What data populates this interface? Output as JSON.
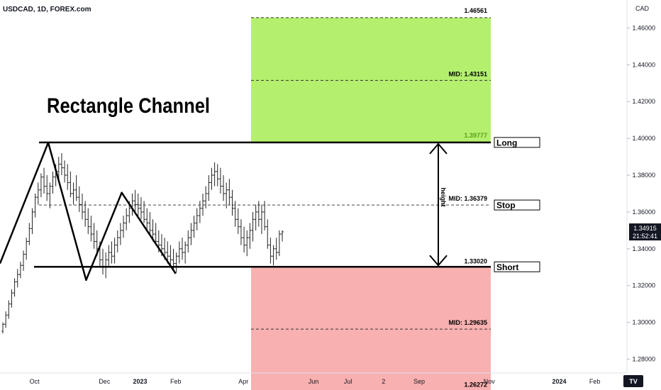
{
  "header": {
    "symbol_line": "USDCAD, 1D, FOREX.com"
  },
  "chart_data": {
    "type": "ohlc",
    "title": "Rectangle Channel",
    "currency_label": "CAD",
    "y_axis": {
      "ticks": [
        "1.46000",
        "1.44000",
        "1.42000",
        "1.40000",
        "1.38000",
        "1.36000",
        "1.34000",
        "1.32000",
        "1.30000",
        "1.28000"
      ],
      "range": [
        1.2725,
        1.4752
      ]
    },
    "x_axis": {
      "ticks": [
        "Oct",
        "Dec",
        "2023",
        "Feb",
        "Apr",
        "Jun",
        "Jul",
        "2",
        "Sep",
        "Nov",
        "2024",
        "Feb"
      ],
      "range": [
        "2022-09-01",
        "2024-02-29"
      ]
    },
    "current_price": {
      "price": "1.34915",
      "countdown": "21:52:41",
      "value": 1.34915
    },
    "long_zone": {
      "top_label": "1.46561",
      "mid_label": "MID: 1.43151",
      "bottom_label": "1.39777",
      "top": 1.46561,
      "mid": 1.43151,
      "bottom": 1.39777,
      "color": "#b4f06e"
    },
    "short_zone": {
      "top_label": "1.33020",
      "mid_label": "MID: 1.29635",
      "bottom_label": "1.26272",
      "top": 1.3302,
      "mid": 1.29635,
      "bottom": 1.26272,
      "color": "#f8b0b0"
    },
    "channel_mid_label": "MID: 1.36379",
    "channel_mid": 1.36379,
    "height_label": "height",
    "boxes": {
      "long": "Long",
      "stop": "Stop",
      "short": "Short"
    },
    "resistance": 1.3978,
    "support": 1.3302,
    "zigzag": [
      {
        "date": "2022-09-01",
        "price": 1.332
      },
      {
        "date": "2022-10-13",
        "price": 1.3977
      },
      {
        "date": "2022-11-15",
        "price": 1.323
      },
      {
        "date": "2022-12-16",
        "price": 1.3705
      },
      {
        "date": "2023-02-01",
        "price": 1.3265
      }
    ],
    "ohlc": [
      [
        1.2952,
        1.3,
        1.294,
        1.299
      ],
      [
        1.299,
        1.306,
        1.297,
        1.304
      ],
      [
        1.304,
        1.312,
        1.302,
        1.31
      ],
      [
        1.31,
        1.318,
        1.308,
        1.316
      ],
      [
        1.316,
        1.324,
        1.314,
        1.322
      ],
      [
        1.322,
        1.329,
        1.319,
        1.326
      ],
      [
        1.326,
        1.333,
        1.324,
        1.331
      ],
      [
        1.331,
        1.339,
        1.328,
        1.337
      ],
      [
        1.337,
        1.346,
        1.334,
        1.344
      ],
      [
        1.344,
        1.354,
        1.342,
        1.351
      ],
      [
        1.351,
        1.362,
        1.348,
        1.36
      ],
      [
        1.36,
        1.37,
        1.357,
        1.368
      ],
      [
        1.368,
        1.376,
        1.364,
        1.372
      ],
      [
        1.372,
        1.381,
        1.368,
        1.379
      ],
      [
        1.379,
        1.384,
        1.37,
        1.374
      ],
      [
        1.374,
        1.38,
        1.366,
        1.37
      ],
      [
        1.37,
        1.376,
        1.362,
        1.374
      ],
      [
        1.374,
        1.382,
        1.37,
        1.379
      ],
      [
        1.379,
        1.386,
        1.374,
        1.382
      ],
      [
        1.382,
        1.39,
        1.378,
        1.386
      ],
      [
        1.386,
        1.392,
        1.38,
        1.384
      ],
      [
        1.384,
        1.388,
        1.376,
        1.38
      ],
      [
        1.38,
        1.386,
        1.372,
        1.376
      ],
      [
        1.376,
        1.382,
        1.368,
        1.37
      ],
      [
        1.37,
        1.376,
        1.364,
        1.372
      ],
      [
        1.372,
        1.38,
        1.366,
        1.368
      ],
      [
        1.368,
        1.374,
        1.36,
        1.364
      ],
      [
        1.364,
        1.37,
        1.356,
        1.36
      ],
      [
        1.36,
        1.366,
        1.352,
        1.356
      ],
      [
        1.356,
        1.362,
        1.348,
        1.352
      ],
      [
        1.352,
        1.358,
        1.344,
        1.348
      ],
      [
        1.348,
        1.354,
        1.34,
        1.344
      ],
      [
        1.344,
        1.35,
        1.336,
        1.34
      ],
      [
        1.34,
        1.344,
        1.33,
        1.334
      ],
      [
        1.334,
        1.34,
        1.326,
        1.33
      ],
      [
        1.33,
        1.338,
        1.324,
        1.334
      ],
      [
        1.334,
        1.342,
        1.33,
        1.338
      ],
      [
        1.338,
        1.344,
        1.332,
        1.336
      ],
      [
        1.336,
        1.346,
        1.332,
        1.342
      ],
      [
        1.342,
        1.35,
        1.338,
        1.346
      ],
      [
        1.346,
        1.354,
        1.342,
        1.35
      ],
      [
        1.35,
        1.358,
        1.346,
        1.354
      ],
      [
        1.354,
        1.362,
        1.35,
        1.358
      ],
      [
        1.358,
        1.366,
        1.354,
        1.362
      ],
      [
        1.362,
        1.37,
        1.358,
        1.366
      ],
      [
        1.366,
        1.372,
        1.36,
        1.364
      ],
      [
        1.364,
        1.37,
        1.358,
        1.362
      ],
      [
        1.362,
        1.368,
        1.356,
        1.36
      ],
      [
        1.36,
        1.366,
        1.354,
        1.356
      ],
      [
        1.356,
        1.362,
        1.35,
        1.354
      ],
      [
        1.354,
        1.36,
        1.348,
        1.35
      ],
      [
        1.35,
        1.356,
        1.344,
        1.348
      ],
      [
        1.348,
        1.354,
        1.342,
        1.344
      ],
      [
        1.344,
        1.35,
        1.338,
        1.342
      ],
      [
        1.342,
        1.348,
        1.336,
        1.34
      ],
      [
        1.34,
        1.346,
        1.334,
        1.338
      ],
      [
        1.338,
        1.344,
        1.332,
        1.336
      ],
      [
        1.336,
        1.342,
        1.33,
        1.334
      ],
      [
        1.334,
        1.34,
        1.328,
        1.332
      ],
      [
        1.332,
        1.338,
        1.327,
        1.336
      ],
      [
        1.336,
        1.344,
        1.332,
        1.34
      ],
      [
        1.34,
        1.346,
        1.334,
        1.338
      ],
      [
        1.338,
        1.344,
        1.332,
        1.342
      ],
      [
        1.342,
        1.35,
        1.338,
        1.346
      ],
      [
        1.346,
        1.354,
        1.342,
        1.35
      ],
      [
        1.35,
        1.358,
        1.346,
        1.354
      ],
      [
        1.354,
        1.362,
        1.35,
        1.358
      ],
      [
        1.358,
        1.366,
        1.354,
        1.362
      ],
      [
        1.362,
        1.37,
        1.358,
        1.366
      ],
      [
        1.366,
        1.374,
        1.362,
        1.37
      ],
      [
        1.37,
        1.38,
        1.366,
        1.376
      ],
      [
        1.376,
        1.384,
        1.372,
        1.38
      ],
      [
        1.38,
        1.387,
        1.374,
        1.382
      ],
      [
        1.382,
        1.386,
        1.374,
        1.378
      ],
      [
        1.378,
        1.384,
        1.37,
        1.374
      ],
      [
        1.374,
        1.38,
        1.366,
        1.37
      ],
      [
        1.37,
        1.376,
        1.362,
        1.372
      ],
      [
        1.372,
        1.378,
        1.364,
        1.368
      ],
      [
        1.368,
        1.372,
        1.358,
        1.362
      ],
      [
        1.362,
        1.366,
        1.352,
        1.356
      ],
      [
        1.356,
        1.362,
        1.348,
        1.352
      ],
      [
        1.352,
        1.356,
        1.342,
        1.346
      ],
      [
        1.346,
        1.352,
        1.338,
        1.342
      ],
      [
        1.342,
        1.35,
        1.336,
        1.346
      ],
      [
        1.346,
        1.354,
        1.34,
        1.35
      ],
      [
        1.35,
        1.36,
        1.344,
        1.356
      ],
      [
        1.356,
        1.364,
        1.35,
        1.36
      ],
      [
        1.36,
        1.366,
        1.352,
        1.356
      ],
      [
        1.356,
        1.364,
        1.348,
        1.36
      ],
      [
        1.36,
        1.366,
        1.35,
        1.352
      ],
      [
        1.352,
        1.356,
        1.34,
        1.342
      ],
      [
        1.342,
        1.346,
        1.332,
        1.336
      ],
      [
        1.336,
        1.342,
        1.331,
        1.34
      ],
      [
        1.34,
        1.346,
        1.334,
        1.338
      ],
      [
        1.338,
        1.35,
        1.336,
        1.348
      ],
      [
        1.348,
        1.35,
        1.344,
        1.3492
      ]
    ]
  }
}
